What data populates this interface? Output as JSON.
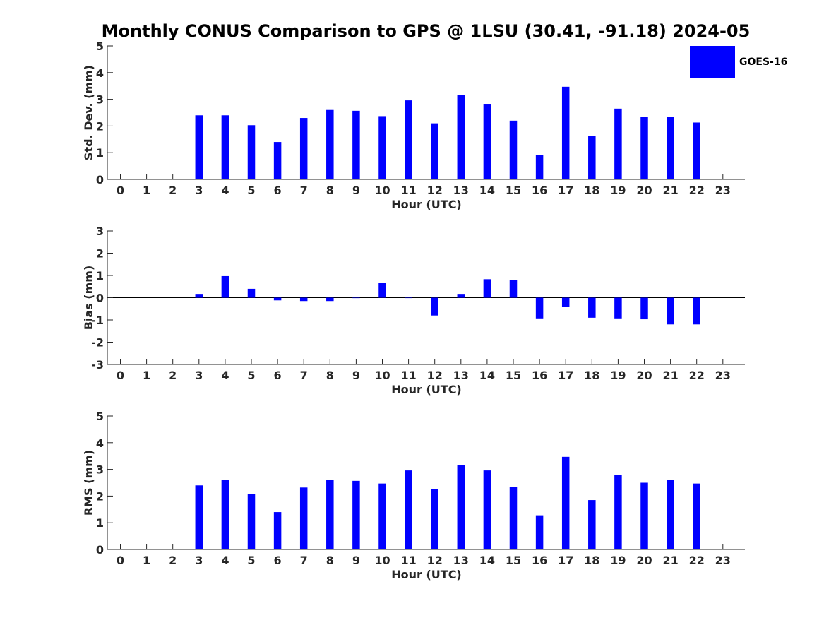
{
  "title": "Monthly CONUS Comparison to GPS @ 1LSU (30.41, -91.18) 2024-05",
  "legend": {
    "label": "GOES-16",
    "color": "#0000ff"
  },
  "chart_data": [
    {
      "type": "bar",
      "name": "std-dev",
      "ylabel": "Std. Dev. (mm)",
      "xlabel": "Hour (UTC)",
      "ylim": [
        0,
        5
      ],
      "yticks": [
        "0",
        "1",
        "2",
        "3",
        "4",
        "5"
      ],
      "categories": [
        "0",
        "1",
        "2",
        "3",
        "4",
        "5",
        "6",
        "7",
        "8",
        "9",
        "10",
        "11",
        "12",
        "13",
        "14",
        "15",
        "16",
        "17",
        "18",
        "19",
        "20",
        "21",
        "22",
        "23"
      ],
      "series": [
        {
          "name": "GOES-16",
          "color": "#0000ff",
          "values": [
            null,
            null,
            null,
            2.4,
            2.4,
            2.03,
            1.4,
            2.3,
            2.6,
            2.57,
            2.37,
            2.96,
            2.1,
            3.15,
            2.83,
            2.2,
            0.9,
            3.47,
            1.62,
            2.65,
            2.33,
            2.35,
            2.13,
            null
          ]
        }
      ]
    },
    {
      "type": "bar",
      "name": "bias",
      "ylabel": "Bias (mm)",
      "xlabel": "Hour (UTC)",
      "ylim": [
        -3,
        3
      ],
      "yticks": [
        "-3",
        "-2",
        "-1",
        "0",
        "1",
        "2",
        "3"
      ],
      "categories": [
        "0",
        "1",
        "2",
        "3",
        "4",
        "5",
        "6",
        "7",
        "8",
        "9",
        "10",
        "11",
        "12",
        "13",
        "14",
        "15",
        "16",
        "17",
        "18",
        "19",
        "20",
        "21",
        "22",
        "23"
      ],
      "series": [
        {
          "name": "GOES-16",
          "color": "#0000ff",
          "values": [
            null,
            null,
            null,
            0.17,
            0.97,
            0.4,
            -0.12,
            -0.15,
            -0.15,
            -0.02,
            0.68,
            -0.01,
            -0.8,
            0.17,
            0.83,
            0.8,
            -0.93,
            -0.4,
            -0.9,
            -0.93,
            -0.97,
            -1.2,
            -1.2,
            null
          ]
        }
      ]
    },
    {
      "type": "bar",
      "name": "rms",
      "ylabel": "RMS (mm)",
      "xlabel": "Hour (UTC)",
      "ylim": [
        0,
        5
      ],
      "yticks": [
        "0",
        "1",
        "2",
        "3",
        "4",
        "5"
      ],
      "categories": [
        "0",
        "1",
        "2",
        "3",
        "4",
        "5",
        "6",
        "7",
        "8",
        "9",
        "10",
        "11",
        "12",
        "13",
        "14",
        "15",
        "16",
        "17",
        "18",
        "19",
        "20",
        "21",
        "22",
        "23"
      ],
      "series": [
        {
          "name": "GOES-16",
          "color": "#0000ff",
          "values": [
            null,
            null,
            null,
            2.4,
            2.6,
            2.08,
            1.4,
            2.32,
            2.6,
            2.57,
            2.47,
            2.96,
            2.27,
            3.15,
            2.96,
            2.35,
            1.28,
            3.47,
            1.85,
            2.8,
            2.5,
            2.6,
            2.47,
            null
          ]
        }
      ]
    }
  ]
}
